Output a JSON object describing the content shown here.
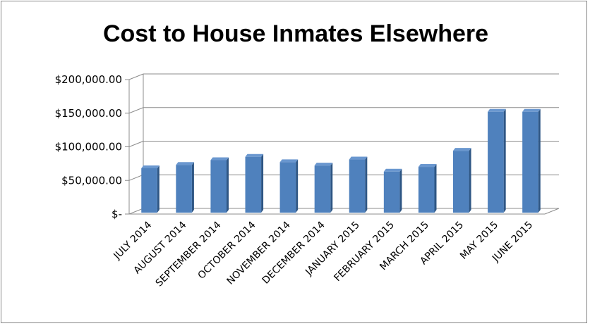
{
  "chart_data": {
    "type": "bar",
    "title": "Cost to House Inmates Elsewhere",
    "xlabel": "",
    "ylabel": "",
    "categories": [
      "JULY 2014",
      "AUGUST 2014",
      "SEPTEMBER 2014",
      "OCTOBER 2014",
      "NOVEMBER 2014",
      "DECEMBER 2014",
      "JANUARY 2015",
      "FEBRUARY 2015",
      "MARCH 2015",
      "APRIL 2015",
      "MAY 2015",
      "JUNE 2015"
    ],
    "values": [
      66000,
      71000,
      78000,
      83000,
      75000,
      70000,
      79000,
      61000,
      68000,
      92000,
      150000,
      150000
    ],
    "ylim": [
      0,
      200000
    ],
    "yticks": [
      0,
      50000,
      100000,
      150000,
      200000
    ],
    "ytick_labels": [
      "$-",
      "$50,000.00",
      "$100,000.00",
      "$150,000.00",
      "$200,000.00"
    ],
    "grid": true,
    "legend": "none",
    "bar_color": "#4F81BD",
    "bar_side_color": "#2E5684",
    "bar_top_color": "#6A97CF",
    "style": "3d-column"
  }
}
